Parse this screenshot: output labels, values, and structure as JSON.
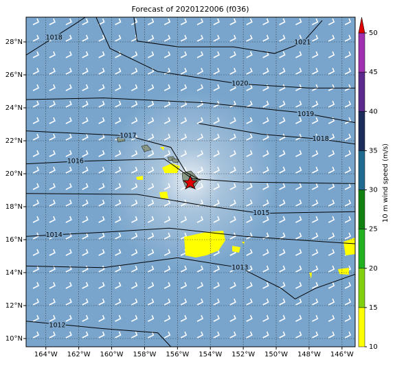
{
  "chart_data": {
    "type": "map",
    "title": "Forecast of 2020122006 (f036)",
    "xlim": [
      -165.2,
      -145.2
    ],
    "ylim": [
      9.5,
      29.5
    ],
    "xticks": [
      {
        "value": -164,
        "label": "164°W"
      },
      {
        "value": -162,
        "label": "162°W"
      },
      {
        "value": -160,
        "label": "160°W"
      },
      {
        "value": -158,
        "label": "158°W"
      },
      {
        "value": -156,
        "label": "156°W"
      },
      {
        "value": -154,
        "label": "154°W"
      },
      {
        "value": -152,
        "label": "152°W"
      },
      {
        "value": -150,
        "label": "150°W"
      },
      {
        "value": -148,
        "label": "148°W"
      },
      {
        "value": -146,
        "label": "146°W"
      }
    ],
    "yticks": [
      {
        "value": 10,
        "label": "10°N"
      },
      {
        "value": 12,
        "label": "12°N"
      },
      {
        "value": 14,
        "label": "14°N"
      },
      {
        "value": 16,
        "label": "16°N"
      },
      {
        "value": 18,
        "label": "18°N"
      },
      {
        "value": 20,
        "label": "20°N"
      },
      {
        "value": 22,
        "label": "22°N"
      },
      {
        "value": 24,
        "label": "24°N"
      },
      {
        "value": 26,
        "label": "26°N"
      },
      {
        "value": 28,
        "label": "28°N"
      }
    ],
    "grid": true,
    "contours": [
      {
        "level": 1018,
        "points": [
          [
            -165.2,
            27.2
          ],
          [
            -162.2,
            29.1
          ],
          [
            -161.6,
            29.5
          ]
        ],
        "label_at": [
          -163.5,
          28.25
        ]
      },
      {
        "level": 1021,
        "points": [
          [
            -158.65,
            29.5
          ],
          [
            -158.45,
            28.05
          ],
          [
            -155.95,
            27.7
          ],
          [
            -152.6,
            27.7
          ],
          [
            -150.1,
            27.3
          ],
          [
            -148.4,
            27.95
          ],
          [
            -147.2,
            29.3
          ]
        ],
        "label_at": [
          -148.4,
          27.95
        ]
      },
      {
        "level": 1020,
        "points": [
          [
            -160.95,
            29.5
          ],
          [
            -160.1,
            27.6
          ],
          [
            -157.2,
            26.2
          ],
          [
            -152.2,
            25.45
          ],
          [
            -148,
            25.2
          ],
          [
            -145.2,
            25.2
          ]
        ],
        "label_at": [
          -152.2,
          25.45
        ]
      },
      {
        "level": 1019,
        "points": [
          [
            -165.2,
            24.5
          ],
          [
            -160.5,
            24.6
          ],
          [
            -154.3,
            24.3
          ],
          [
            -148.4,
            23.7
          ],
          [
            -145.2,
            23.1
          ]
        ],
        "label_at": [
          -148.2,
          23.6
        ]
      },
      {
        "level": 1018,
        "points": [
          [
            -154.7,
            23.05
          ],
          [
            -150.9,
            22.4
          ],
          [
            -147.3,
            22.1
          ],
          [
            -145.2,
            21.8
          ]
        ],
        "label_at": [
          -147.3,
          22.1
        ]
      },
      {
        "level": 1017,
        "points": [
          [
            -165.2,
            22.6
          ],
          [
            -159,
            22.3
          ],
          [
            -156.4,
            21.6
          ],
          [
            -155.5,
            20.1
          ],
          [
            -154.6,
            19.6
          ]
        ],
        "label_at": [
          -159,
          22.3
        ]
      },
      {
        "level": 1016,
        "points": [
          [
            -165.2,
            20.6
          ],
          [
            -162.2,
            20.75
          ],
          [
            -156.8,
            20.9
          ],
          [
            -155.1,
            19.7
          ],
          [
            -152.2,
            19.5
          ],
          [
            -145.2,
            19.4
          ]
        ],
        "label_at": [
          -162.2,
          20.75
        ]
      },
      {
        "level": 1015,
        "points": [
          [
            -165.2,
            18.8
          ],
          [
            -158.45,
            18.75
          ],
          [
            -154.3,
            18.05
          ],
          [
            -150.9,
            17.6
          ],
          [
            -145.2,
            17.7
          ]
        ],
        "label_at": [
          -150.9,
          17.6
        ]
      },
      {
        "level": 1014,
        "points": [
          [
            -165.2,
            16.2
          ],
          [
            -160.5,
            16.45
          ],
          [
            -156.5,
            16.7
          ],
          [
            -151.9,
            16.2
          ],
          [
            -145.2,
            15.75
          ]
        ],
        "label_at": [
          -163.5,
          16.28
        ]
      },
      {
        "level": 1013,
        "points": [
          [
            -165.2,
            14.4
          ],
          [
            -160.5,
            14.3
          ],
          [
            -156,
            14.9
          ],
          [
            -152.2,
            14.3
          ],
          [
            -149.7,
            13.05
          ],
          [
            -148.85,
            12.4
          ],
          [
            -147.6,
            13.05
          ],
          [
            -145.2,
            13.9
          ]
        ],
        "label_at": [
          -152.2,
          14.3
        ]
      },
      {
        "level": 1012,
        "points": [
          [
            -165.2,
            11.05
          ],
          [
            -160.5,
            10.6
          ],
          [
            -157.2,
            10.35
          ],
          [
            -156.4,
            9.5
          ]
        ],
        "label_at": [
          -163.3,
          10.8
        ]
      }
    ],
    "colorbar": {
      "label": "10 m wind speed (m/s)",
      "lim": [
        10,
        50
      ],
      "ticks": [
        10,
        15,
        20,
        25,
        30,
        35,
        40,
        45,
        50
      ],
      "colors": [
        "#ffff00",
        "#80d010",
        "#20b020",
        "#108010",
        "#206a90",
        "#1c2c5c",
        "#5c2a8c",
        "#a030b0"
      ],
      "extend_color": "#e00000"
    }
  }
}
